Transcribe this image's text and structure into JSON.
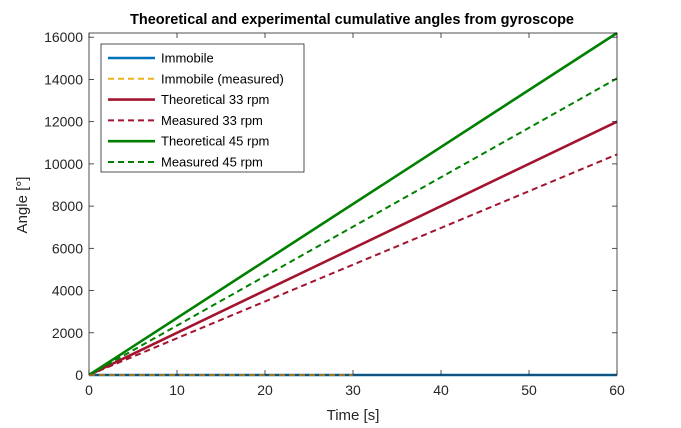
{
  "chart_data": {
    "type": "line",
    "title": "Theoretical and experimental cumulative angles from gyroscope",
    "xlabel": "Time [s]",
    "ylabel": "Angle [°]",
    "xlim": [
      0,
      60
    ],
    "ylim": [
      0,
      16200
    ],
    "xticks": [
      0,
      10,
      20,
      30,
      40,
      50,
      60
    ],
    "yticks": [
      0,
      2000,
      4000,
      6000,
      8000,
      10000,
      12000,
      14000,
      16000
    ],
    "grid": false,
    "legend_position": "top-left",
    "series": [
      {
        "name": "Immobile",
        "color": "#0072bd",
        "style": "solid",
        "x": [
          0,
          60
        ],
        "y": [
          0,
          0
        ]
      },
      {
        "name": "Immobile (measured)",
        "color": "#edb120",
        "style": "dashed",
        "x": [
          0,
          30
        ],
        "y": [
          0,
          0
        ]
      },
      {
        "name": "Theoretical 33 rpm",
        "color": "#a2142f",
        "style": "solid",
        "x": [
          0,
          60
        ],
        "y": [
          0,
          12000
        ]
      },
      {
        "name": "Measured 33 rpm",
        "color": "#a2142f",
        "style": "dashed",
        "x": [
          0,
          60
        ],
        "y": [
          0,
          10450
        ]
      },
      {
        "name": "Theoretical 45 rpm",
        "color": "#008000",
        "style": "solid",
        "x": [
          0,
          60
        ],
        "y": [
          0,
          16200
        ]
      },
      {
        "name": "Measured 45 rpm",
        "color": "#008000",
        "style": "dashed",
        "x": [
          0,
          60
        ],
        "y": [
          0,
          14050
        ]
      }
    ]
  }
}
